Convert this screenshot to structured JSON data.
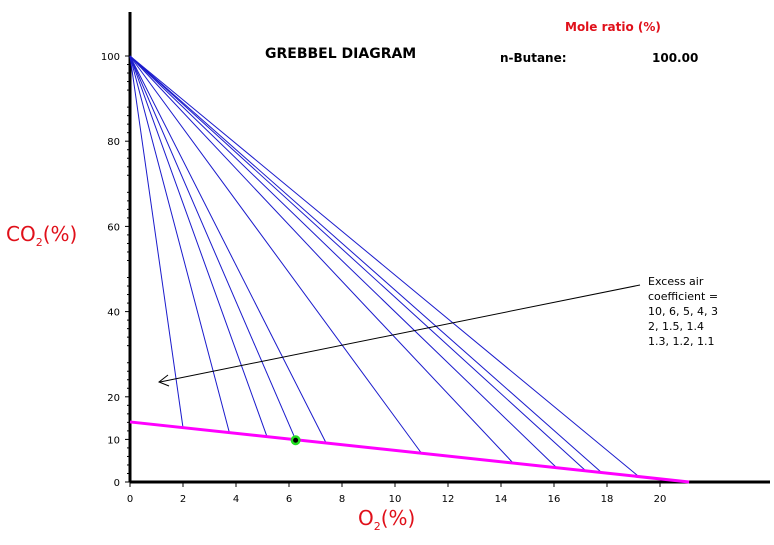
{
  "chart_data": {
    "type": "line",
    "title": "GREBBEL DIAGRAM",
    "xlabel": {
      "main": "O",
      "sub": "2",
      "unit": "(%)"
    },
    "ylabel": {
      "main": "CO",
      "sub": "2",
      "unit": "(%)"
    },
    "xlim": [
      0,
      24
    ],
    "ylim": [
      0,
      100
    ],
    "x_ticks": [
      0,
      2,
      4,
      6,
      8,
      10,
      12,
      14,
      16,
      18,
      20
    ],
    "y_ticks": [
      0,
      10,
      20,
      40,
      60,
      80,
      100
    ],
    "combustion_line": {
      "from": [
        0,
        14.1
      ],
      "to": [
        21.1,
        0
      ],
      "color": "#ff00ff"
    },
    "excess_air_lines": {
      "origin": [
        0,
        100
      ],
      "color": "#1a1acc",
      "end_o2": [
        2.0,
        3.75,
        5.17,
        6.25,
        7.4,
        11.0,
        14.46,
        16.1,
        17.2,
        17.8,
        19.2
      ]
    },
    "marker": {
      "o2": 6.25,
      "co2": 9.8,
      "fill": "#000000",
      "ring": "#22dd22"
    },
    "annotation": {
      "lines": [
        "Excess air",
        "coefficient =",
        "10, 6, 5, 4, 3",
        "2, 1.5, 1.4",
        "1.3, 1.2, 1.1"
      ]
    }
  },
  "mole_ratio_label": "Mole ratio (%)",
  "fuel": {
    "name": "n-Butane:",
    "value": "100.00"
  }
}
